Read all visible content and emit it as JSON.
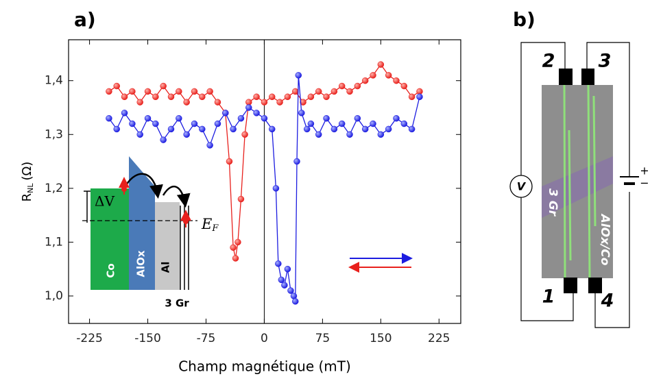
{
  "chart_data": {
    "type": "scatter",
    "panel_label": "a)",
    "xlabel": "Champ magnétique (mT)",
    "ylabel": "R",
    "ylabel_sub": "NL",
    "ylabel_unit": "(Ω)",
    "xlim": [
      -252,
      253
    ],
    "ylim": [
      0.949,
      1.476
    ],
    "xticks": [
      -225,
      -150,
      -75,
      0,
      75,
      150,
      225
    ],
    "yticks": [
      {
        "value": 1.0,
        "label": "1,0"
      },
      {
        "value": 1.1,
        "label": "1,1"
      },
      {
        "value": 1.2,
        "label": "1,2"
      },
      {
        "value": 1.3,
        "label": "1,3"
      },
      {
        "value": 1.4,
        "label": "1,4"
      }
    ],
    "vline": 0,
    "series": [
      {
        "color": "#e8201c",
        "x": [
          -200,
          -190,
          -180,
          -170,
          -160,
          -150,
          -140,
          -130,
          -120,
          -110,
          -100,
          -90,
          -80,
          -70,
          -60,
          -50,
          -45,
          -40,
          -37,
          -34,
          -30,
          -25,
          -20,
          -10,
          0,
          10,
          20,
          30,
          40,
          50,
          60,
          70,
          80,
          90,
          100,
          110,
          120,
          130,
          140,
          150,
          160,
          170,
          180,
          190,
          200
        ],
        "values": [
          1.38,
          1.39,
          1.37,
          1.38,
          1.36,
          1.38,
          1.37,
          1.39,
          1.37,
          1.38,
          1.36,
          1.38,
          1.37,
          1.38,
          1.36,
          1.34,
          1.25,
          1.09,
          1.07,
          1.1,
          1.18,
          1.3,
          1.36,
          1.37,
          1.36,
          1.37,
          1.36,
          1.37,
          1.38,
          1.36,
          1.37,
          1.38,
          1.37,
          1.38,
          1.39,
          1.38,
          1.39,
          1.4,
          1.41,
          1.43,
          1.41,
          1.4,
          1.39,
          1.37,
          1.38
        ]
      },
      {
        "color": "#1c1ce0",
        "x": [
          -200,
          -190,
          -180,
          -170,
          -160,
          -150,
          -140,
          -130,
          -120,
          -110,
          -100,
          -90,
          -80,
          -70,
          -60,
          -50,
          -40,
          -30,
          -20,
          -10,
          0,
          10,
          15,
          18,
          22,
          26,
          30,
          34,
          38,
          40,
          42,
          44,
          48,
          55,
          60,
          70,
          80,
          90,
          100,
          110,
          120,
          130,
          140,
          150,
          160,
          170,
          180,
          190,
          200
        ],
        "values": [
          1.33,
          1.31,
          1.34,
          1.32,
          1.3,
          1.33,
          1.32,
          1.29,
          1.31,
          1.33,
          1.3,
          1.32,
          1.31,
          1.28,
          1.32,
          1.34,
          1.31,
          1.33,
          1.35,
          1.34,
          1.33,
          1.31,
          1.2,
          1.06,
          1.03,
          1.02,
          1.05,
          1.01,
          1.0,
          0.99,
          1.25,
          1.41,
          1.34,
          1.31,
          1.32,
          1.3,
          1.33,
          1.31,
          1.32,
          1.3,
          1.33,
          1.31,
          1.32,
          1.3,
          1.31,
          1.33,
          1.32,
          1.31,
          1.37
        ]
      }
    ],
    "inset": {
      "delta_v": "ΔV",
      "fermi": "E",
      "fermi_sub": "F",
      "co": "Co",
      "alox": "AlOx",
      "al": "Al",
      "gr": "3 Gr"
    }
  },
  "panel_b": {
    "label": "b)",
    "contacts": [
      "2",
      "3",
      "1",
      "4"
    ],
    "voltmeter": "V",
    "graphene": "3 Gr",
    "electrode": "AlOx/Co",
    "plus": "+",
    "minus": "−"
  }
}
